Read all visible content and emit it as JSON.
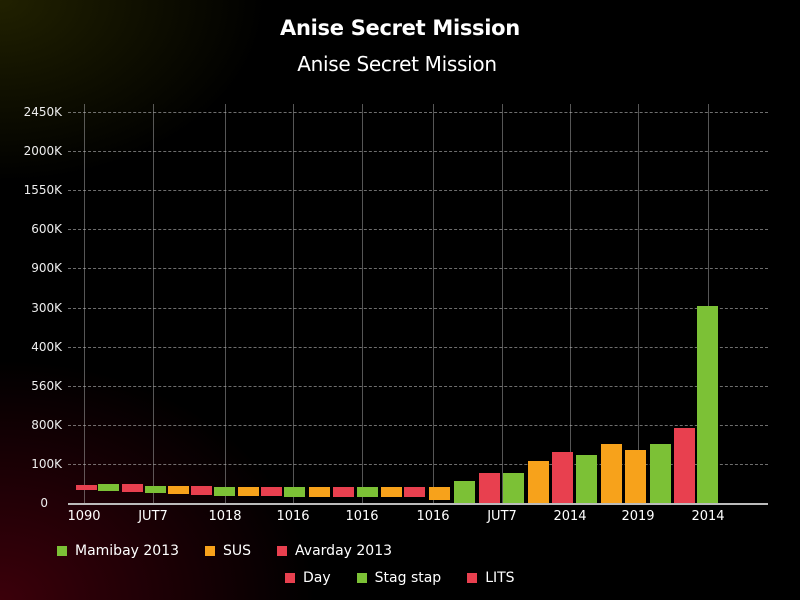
{
  "chart_data": {
    "type": "bar",
    "title": "Anise Secret Mission",
    "subtitle": "Anise Secret Mission",
    "xlabel": "",
    "ylabel": "",
    "y_tick_labels": [
      "0",
      "100K",
      "800K",
      "560K",
      "400K",
      "300K",
      "900K",
      "600K",
      "1550K",
      "2000K",
      "2450K"
    ],
    "x_tick_labels": [
      "1090",
      "JUT7",
      "1018",
      "1016",
      "1016",
      "1016",
      "JUT7",
      "2014",
      "2019",
      "2014"
    ],
    "grid": true,
    "legend_position": "bottom",
    "colors": {
      "green": "#7cc136",
      "orange": "#f7a21b",
      "red": "#e8404f"
    },
    "legend": [
      {
        "label": "Mamibay 2013",
        "color": "#7cc136"
      },
      {
        "label": "SUS",
        "color": "#f7a21b"
      },
      {
        "label": "Avarday 2013",
        "color": "#e8404f"
      },
      {
        "label": "Day",
        "color": "#e8404f"
      },
      {
        "label": "Stag stap",
        "color": "#7cc136"
      },
      {
        "label": "LITS",
        "color": "#e8404f"
      }
    ],
    "note": "values expressed in gridline-step units (1 unit = one y tick step, 0 = baseline); bars 1-15 appear as floating short segments",
    "bars": [
      {
        "color": "red",
        "bottom": 0.33,
        "top": 0.46
      },
      {
        "color": "green",
        "bottom": 0.31,
        "top": 0.49
      },
      {
        "color": "red",
        "bottom": 0.28,
        "top": 0.49
      },
      {
        "color": "green",
        "bottom": 0.26,
        "top": 0.44
      },
      {
        "color": "orange",
        "bottom": 0.23,
        "top": 0.44
      },
      {
        "color": "red",
        "bottom": 0.21,
        "top": 0.44
      },
      {
        "color": "green",
        "bottom": 0.18,
        "top": 0.41
      },
      {
        "color": "orange",
        "bottom": 0.18,
        "top": 0.41
      },
      {
        "color": "red",
        "bottom": 0.18,
        "top": 0.41
      },
      {
        "color": "green",
        "bottom": 0.15,
        "top": 0.41
      },
      {
        "color": "orange",
        "bottom": 0.15,
        "top": 0.41
      },
      {
        "color": "red",
        "bottom": 0.15,
        "top": 0.41
      },
      {
        "color": "green",
        "bottom": 0.15,
        "top": 0.41
      },
      {
        "color": "orange",
        "bottom": 0.15,
        "top": 0.41
      },
      {
        "color": "red",
        "bottom": 0.15,
        "top": 0.41
      },
      {
        "color": "orange",
        "bottom": 0.08,
        "top": 0.41
      },
      {
        "color": "green",
        "bottom": 0.0,
        "top": 0.56
      },
      {
        "color": "red",
        "bottom": 0.0,
        "top": 0.77
      },
      {
        "color": "green",
        "bottom": 0.0,
        "top": 0.77
      },
      {
        "color": "orange",
        "bottom": 0.0,
        "top": 1.08
      },
      {
        "color": "red",
        "bottom": 0.0,
        "top": 1.31
      },
      {
        "color": "green",
        "bottom": 0.0,
        "top": 1.23
      },
      {
        "color": "orange",
        "bottom": 0.0,
        "top": 1.51
      },
      {
        "color": "orange",
        "bottom": 0.0,
        "top": 1.36
      },
      {
        "color": "green",
        "bottom": 0.0,
        "top": 1.51
      },
      {
        "color": "red",
        "bottom": 0.0,
        "top": 1.92
      },
      {
        "color": "green",
        "bottom": 0.0,
        "top": 5.03
      }
    ]
  }
}
